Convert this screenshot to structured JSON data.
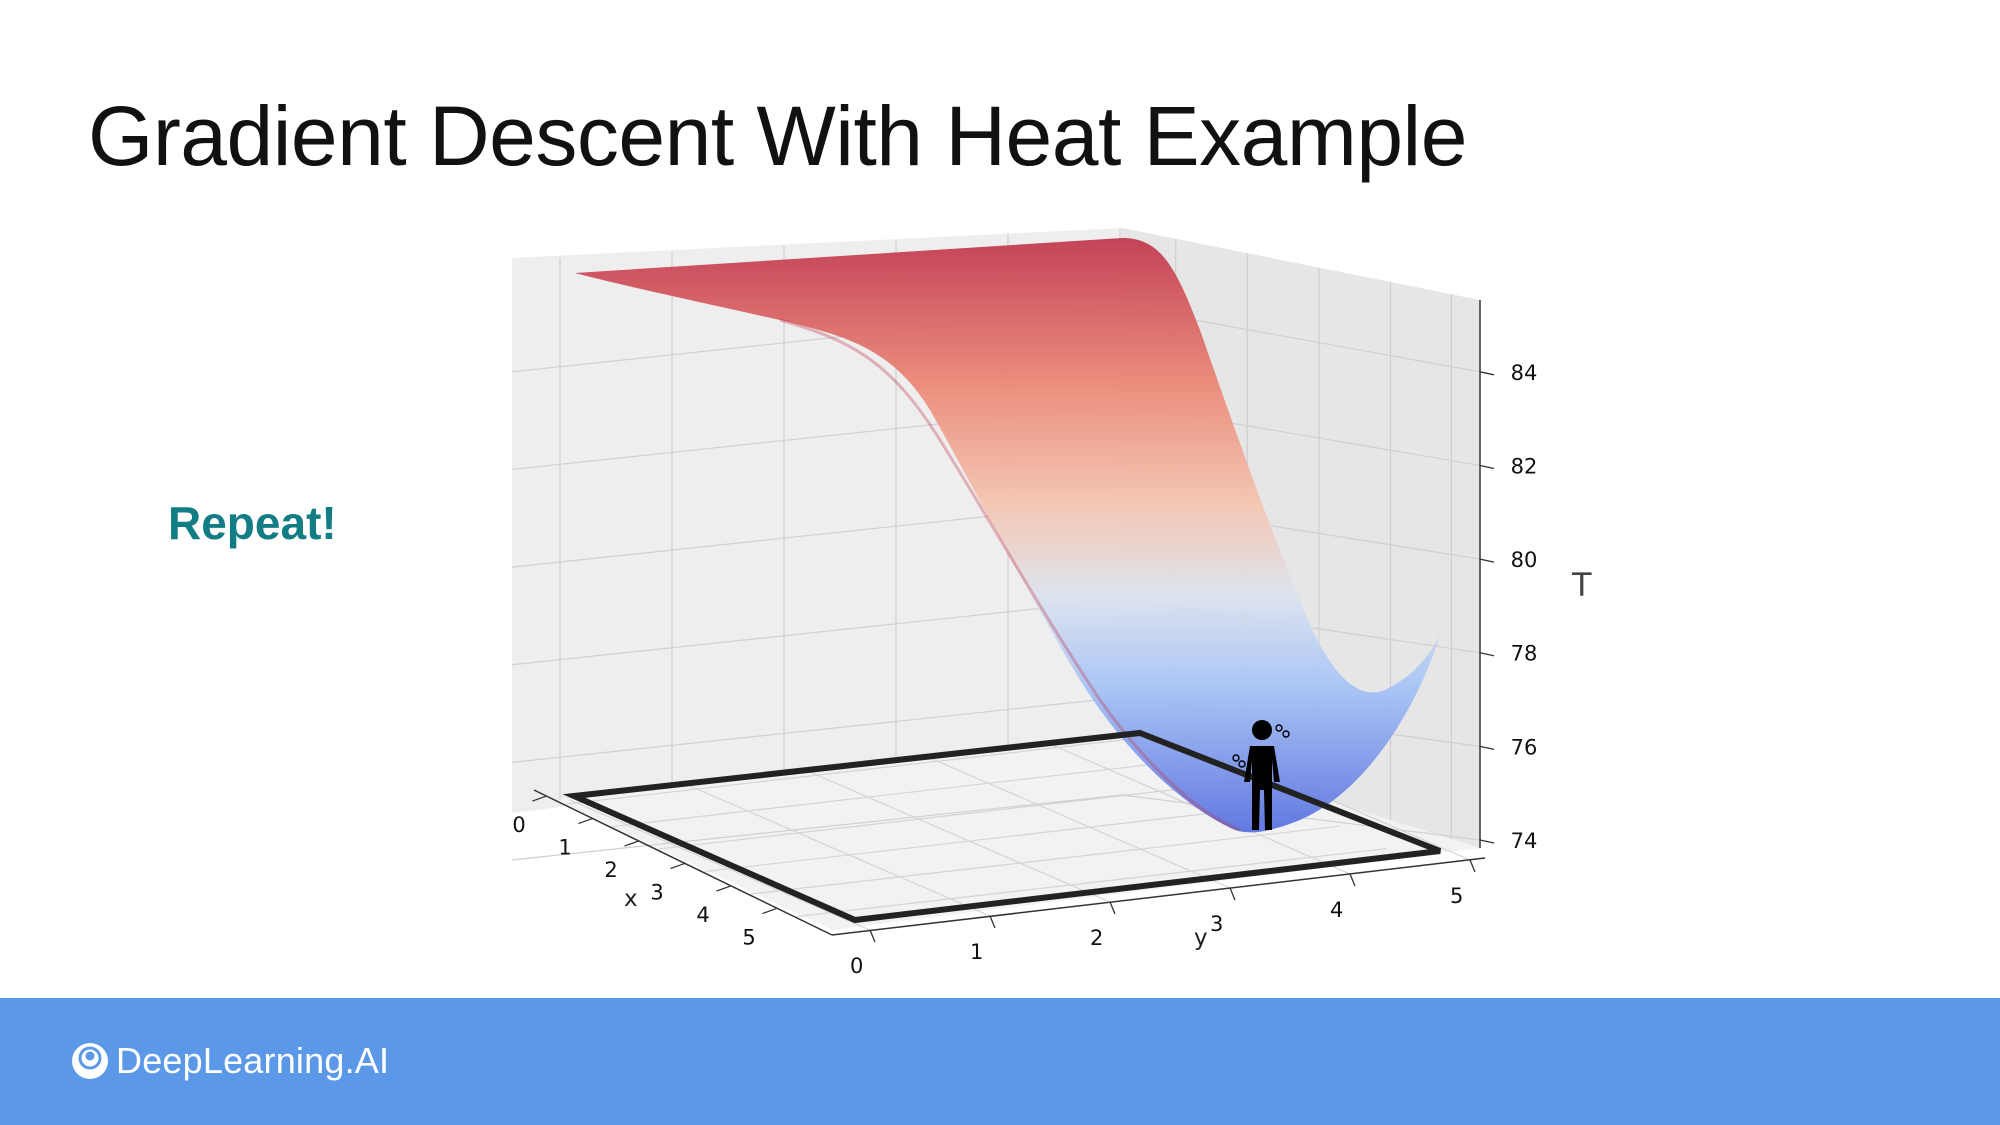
{
  "slide": {
    "title": "Gradient Descent With Heat Example",
    "side_label": "Repeat!",
    "brand": "DeepLearning.AI"
  },
  "colors": {
    "accent_teal": "#137d86",
    "footer_blue": "#5b99e8",
    "surface_high": "#b40426",
    "surface_low": "#3b4cc0"
  },
  "chart_data": {
    "type": "surface",
    "title": "",
    "xlabel": "x",
    "ylabel": "y",
    "zlabel": "T",
    "x_ticks": [
      "0",
      "1",
      "2",
      "3",
      "4",
      "5"
    ],
    "y_ticks": [
      "0",
      "1",
      "2",
      "3",
      "4",
      "5"
    ],
    "z_ticks": [
      "74",
      "76",
      "78",
      "80",
      "82",
      "84"
    ],
    "xlim": [
      0,
      5
    ],
    "ylim": [
      0,
      5
    ],
    "zlim": [
      74,
      85
    ],
    "grid": true,
    "colormap": "coolwarm",
    "minimum_marker": "person-icon"
  }
}
